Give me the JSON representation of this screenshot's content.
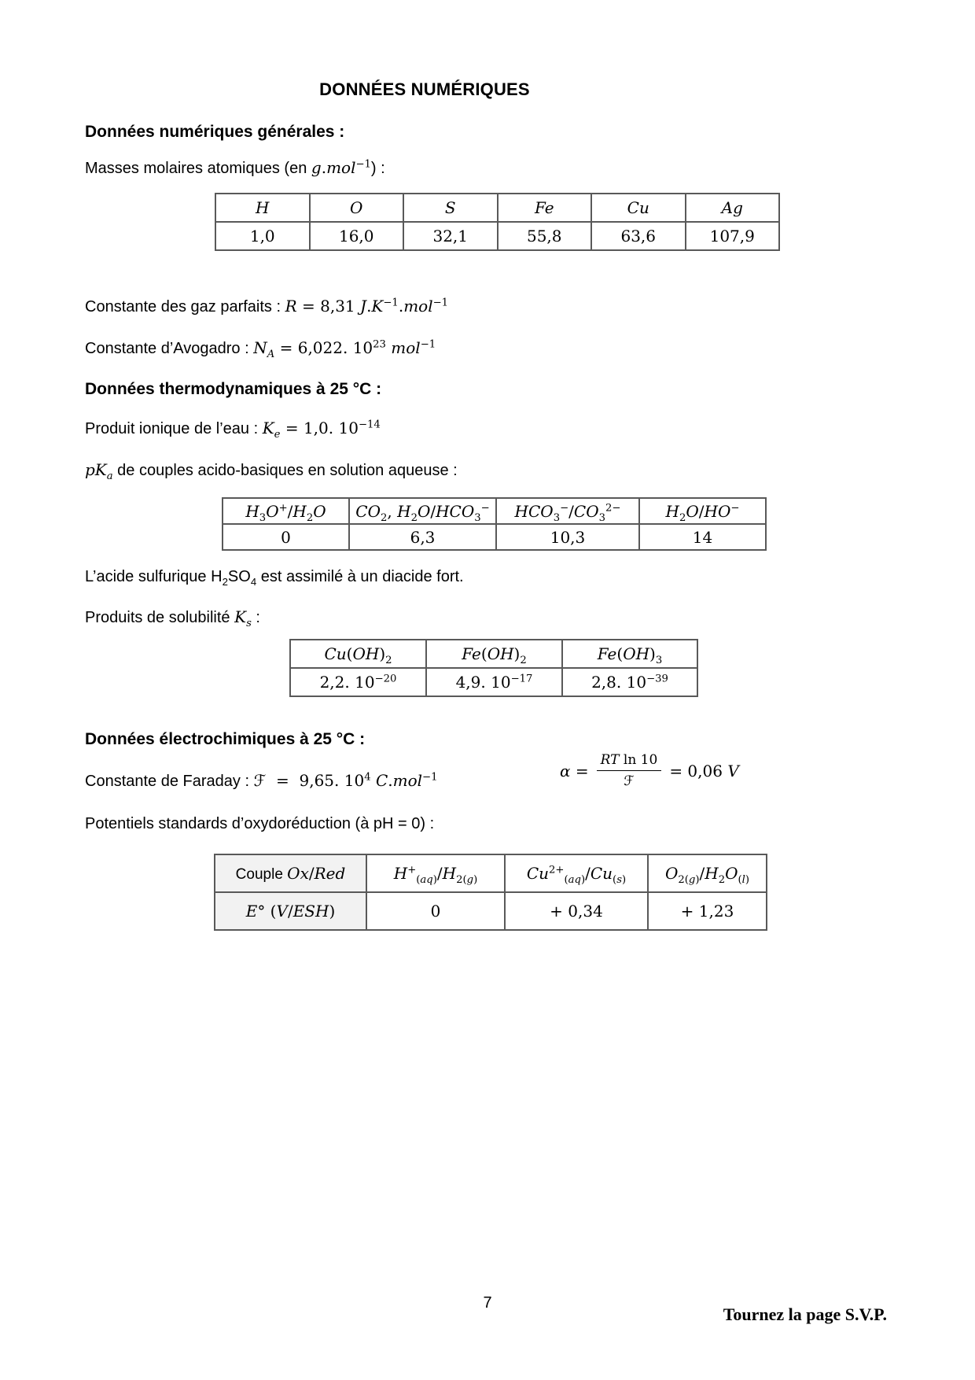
{
  "page": {
    "title": "DONNÉES NUMÉRIQUES",
    "footer": {
      "page_number": "7",
      "turn_note": "Tournez la page S.V.P."
    }
  },
  "general": {
    "heading": "Données numériques générales :",
    "molar_intro_html": "Masses molaires atomiques (en <span class='m'><i>g</i>.<i>mol</i><sup>−1</sup></span>) :",
    "molar_table": {
      "headers": [
        "H",
        "O",
        "S",
        "Fe",
        "Cu",
        "Ag"
      ],
      "values": [
        "1,0",
        "16,0",
        "32,1",
        "55,8",
        "63,6",
        "107,9"
      ]
    },
    "gas_constant_html": "Constante des gaz parfaits : <span class='m'><i>R</i> = 8,31 <i>J</i>.<i>K</i><sup>−1</sup>.<i>mol</i><sup>−1</sup></span>",
    "avogadro_html": "Constante d’Avogadro : <span class='m'><i>N<sub>A</sub></i> = 6,022. 10<sup>23</sup> <i>mol</i><sup>−1</sup></span>"
  },
  "thermo": {
    "heading": "Données thermodynamiques à 25 °C :",
    "water_ionic_html": "Produit ionique de l’eau : <span class='m'><i>K<sub>e</sub></i> = 1,0. 10<sup>−14</sup></span>",
    "pka_intro_html": "<span class='m'><i>pK<sub>a</sub></i></span> de couples acido-basiques en solution aqueuse :",
    "pka_table": {
      "headers_html": [
        "<i>H</i><sub>3</sub><i>O</i><sup>+</sup>/<i>H</i><sub>2</sub><i>O</i>",
        "<i>CO</i><sub>2</sub>, <i>H</i><sub>2</sub><i>O</i>/<i>HCO</i><sub>3</sub><sup>−</sup>",
        "<i>HCO</i><sub>3</sub><sup>−</sup>/<i>CO</i><sub>3</sub><sup>2−</sup>",
        "<i>H</i><sub>2</sub><i>O</i>/<i>HO</i><sup>−</sup>"
      ],
      "values": [
        "0",
        "6,3",
        "10,3",
        "14"
      ]
    },
    "sulfuric_html": "L’acide sulfurique H<sub>2</sub>SO<sub>4</sub> est assimilé à un diacide fort.",
    "ks_intro_html": "Produits de solubilité <span class='m'><i>K<sub>s</sub></i></span> :",
    "ks_table": {
      "headers_html": [
        "<i>Cu</i>(<i>OH</i>)<sub>2</sub>",
        "<i>Fe</i>(<i>OH</i>)<sub>2</sub>",
        "<i>Fe</i>(<i>OH</i>)<sub>3</sub>"
      ],
      "values_html": [
        "2,2. 10<sup>−20</sup>",
        "4,9. 10<sup>−17</sup>",
        "2,8. 10<sup>−39</sup>"
      ]
    }
  },
  "electro": {
    "heading": "Données électrochimiques à 25 °C :",
    "faraday_html": "Constante de Faraday : <span class='m'>ℱ&nbsp; =&nbsp; 9,65. 10<sup>4</sup> <i>C</i>.<i>mol</i><sup>−1</sup></span>",
    "alpha": {
      "lhs_html": "<i>α</i> =",
      "numerator_html": "<i>RT</i> ln 10",
      "denominator_html": "ℱ",
      "rhs_html": "= 0,06 <i>V</i>"
    },
    "potentials_intro": "Potentiels standards d’oxydoréduction (à pH = 0) :",
    "potentials_table": {
      "row_couple_html": [
        "<span class='sans'>Couple </span><i>Ox</i>/<i>Red</i>",
        "<i>H</i><sup>+</sup><sub>(<i>aq</i>)</sub>/<i>H</i><sub>2(<i>g</i>)</sub>",
        "<i>Cu</i><sup>2+</sup><sub>(<i>aq</i>)</sub>/<i>Cu</i><sub>(<i>s</i>)</sub>",
        "<i>O</i><sub>2(<i>g</i>)</sub>/<i>H</i><sub>2</sub><i>O</i><sub>(<i>l</i>)</sub>"
      ],
      "row_potential_html": [
        "<i>E</i>° (<i>V</i>/<i>ESH</i>)",
        "0",
        "+ 0,34",
        "+ 1,23"
      ]
    }
  }
}
